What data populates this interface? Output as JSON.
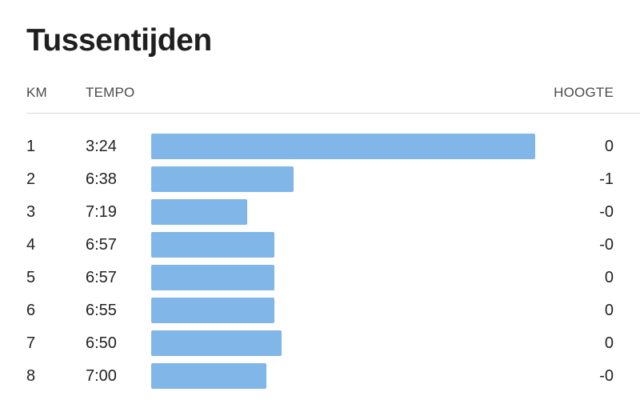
{
  "title": "Tussentijden",
  "headers": {
    "km": "KM",
    "tempo": "TEMPO",
    "hoogte": "HOOGTE"
  },
  "colors": {
    "bar": "#80b6e8"
  },
  "splits": [
    {
      "km": "1",
      "tempo": "3:24",
      "hoogte": "0",
      "bar_fraction": 1.0
    },
    {
      "km": "2",
      "tempo": "6:38",
      "hoogte": "-1",
      "bar_fraction": 0.37
    },
    {
      "km": "3",
      "tempo": "7:19",
      "hoogte": "-0",
      "bar_fraction": 0.25
    },
    {
      "km": "4",
      "tempo": "6:57",
      "hoogte": "-0",
      "bar_fraction": 0.32
    },
    {
      "km": "5",
      "tempo": "6:57",
      "hoogte": "0",
      "bar_fraction": 0.32
    },
    {
      "km": "6",
      "tempo": "6:55",
      "hoogte": "0",
      "bar_fraction": 0.32
    },
    {
      "km": "7",
      "tempo": "6:50",
      "hoogte": "0",
      "bar_fraction": 0.34
    },
    {
      "km": "8",
      "tempo": "7:00",
      "hoogte": "-0",
      "bar_fraction": 0.3
    }
  ]
}
